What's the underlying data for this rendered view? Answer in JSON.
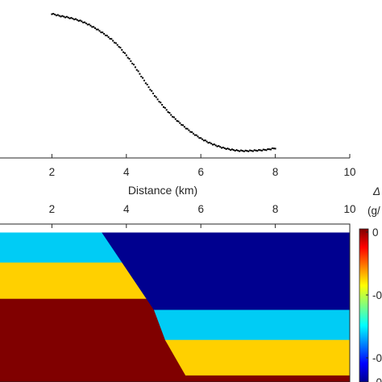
{
  "chart_data": [
    {
      "type": "scatter",
      "xlabel": "Distance (km)",
      "ylabel": "",
      "title": "",
      "xlim": [
        0,
        10
      ],
      "xticks": [
        "2",
        "4",
        "6",
        "8",
        "10"
      ],
      "grid": false,
      "marker_color": "#000000",
      "series": [
        {
          "x": [
            2.0,
            2.2,
            2.4,
            2.6,
            2.8,
            3.0,
            3.2,
            3.4,
            3.6,
            3.8,
            4.0,
            4.2,
            4.4,
            4.6,
            4.8,
            5.0,
            5.2,
            5.4,
            5.6,
            5.8,
            6.0,
            6.2,
            6.4,
            6.6,
            6.8,
            7.0,
            7.2,
            7.4,
            7.6,
            7.8,
            8.0
          ],
          "y": [
            1.0,
            0.985,
            0.975,
            0.962,
            0.945,
            0.92,
            0.89,
            0.855,
            0.815,
            0.765,
            0.7,
            0.63,
            0.55,
            0.47,
            0.395,
            0.33,
            0.27,
            0.22,
            0.175,
            0.135,
            0.1,
            0.072,
            0.05,
            0.032,
            0.02,
            0.012,
            0.01,
            0.012,
            0.015,
            0.02,
            0.03
          ]
        }
      ]
    },
    {
      "type": "heatmap",
      "xlim": [
        0,
        10
      ],
      "xticks": [
        "2",
        "4",
        "6",
        "8",
        "10"
      ],
      "colorbar_label_fragment": "Δ",
      "colorbar_unit_fragment": "(g/",
      "colorbar_ticks": [
        "0",
        "-0",
        "-0",
        "-0"
      ],
      "layers": [
        {
          "color": "#ffffff",
          "x_left_top": 0,
          "x_left_bottom": 0,
          "x_right_top": 10,
          "x_right_bottom": 10,
          "side": "full",
          "depth_top": 0.0,
          "depth_bottom": 0.055
        },
        {
          "color": "#00ccf5",
          "side": "left",
          "x_break": [
            3.3,
            4.05
          ],
          "depth_top": 0.055,
          "depth_bottom": 0.245
        },
        {
          "color": "#ffd000",
          "side": "left",
          "x_break": [
            4.05,
            4.6
          ],
          "depth_top": 0.245,
          "depth_bottom": 0.475
        },
        {
          "color": "#800000",
          "side": "left",
          "x_break": [
            4.6,
            5.75
          ],
          "depth_top": 0.475,
          "depth_bottom": 1.0
        },
        {
          "color": "#00008f",
          "side": "right",
          "depth_top": 0.055,
          "depth_bottom": 0.545
        },
        {
          "color": "#00ccf5",
          "side": "right",
          "depth_top": 0.545,
          "depth_bottom": 0.735
        },
        {
          "color": "#ffd000",
          "side": "right",
          "depth_top": 0.735,
          "depth_bottom": 0.96
        },
        {
          "color": "#800000",
          "side": "right",
          "depth_top": 0.96,
          "depth_bottom": 1.0
        }
      ],
      "fault_trace": [
        [
          3.35,
          0.055
        ],
        [
          4.05,
          0.245
        ],
        [
          4.6,
          0.475
        ],
        [
          4.75,
          0.545
        ],
        [
          5.05,
          0.735
        ],
        [
          5.6,
          0.96
        ],
        [
          5.7,
          1.0
        ]
      ]
    }
  ],
  "colors": {
    "colorbar_top": "#800000",
    "colorbar_bottom": "#00008f",
    "axis": "#262626"
  }
}
